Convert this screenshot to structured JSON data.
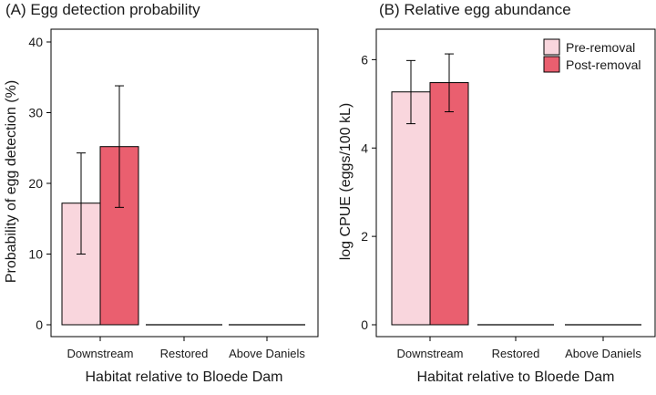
{
  "figure": {
    "shared_xlabel": "Habitat relative to Bloede Dam"
  },
  "legend": {
    "entries": [
      {
        "name": "Pre-removal",
        "color": "#f9d6dd"
      },
      {
        "name": "Post-removal",
        "color": "#ea5f6f"
      }
    ]
  },
  "chart_data": [
    {
      "type": "bar",
      "title": "(A) Egg detection probability",
      "xlabel": "Habitat relative to Bloede Dam",
      "ylabel": "Probability of egg detection (%)",
      "ylim": [
        0,
        40
      ],
      "yticks": [
        0,
        10,
        20,
        30,
        40
      ],
      "grid": false,
      "categories": [
        "Downstream",
        "Restored",
        "Above Daniels"
      ],
      "series": [
        {
          "name": "Pre-removal",
          "color": "#f9d6dd",
          "values": [
            17.2,
            0,
            0
          ],
          "err_low": [
            10.0,
            0,
            0
          ],
          "err_high": [
            24.3,
            0,
            0
          ]
        },
        {
          "name": "Post-removal",
          "color": "#ea5f6f",
          "values": [
            25.2,
            0,
            0
          ],
          "err_low": [
            16.6,
            0,
            0
          ],
          "err_high": [
            33.8,
            0,
            0
          ]
        }
      ]
    },
    {
      "type": "bar",
      "title": "(B) Relative egg abundance",
      "xlabel": "Habitat relative to Bloede Dam",
      "ylabel": "log CPUE (eggs/100 kL)",
      "ylim": [
        0,
        6.4
      ],
      "yticks": [
        0,
        2,
        4,
        6
      ],
      "grid": false,
      "legend_position": "top-right",
      "categories": [
        "Downstream",
        "Restored",
        "Above Daniels"
      ],
      "series": [
        {
          "name": "Pre-removal",
          "color": "#f9d6dd",
          "values": [
            5.27,
            0,
            0
          ],
          "err_low": [
            4.55,
            0,
            0
          ],
          "err_high": [
            5.98,
            0,
            0
          ]
        },
        {
          "name": "Post-removal",
          "color": "#ea5f6f",
          "values": [
            5.48,
            0,
            0
          ],
          "err_low": [
            4.82,
            0,
            0
          ],
          "err_high": [
            6.13,
            0,
            0
          ]
        }
      ]
    }
  ]
}
